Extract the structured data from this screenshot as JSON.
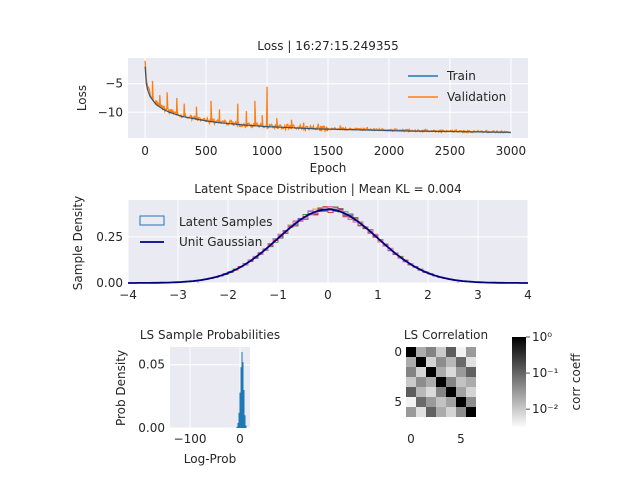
{
  "chart_data": [
    {
      "type": "line",
      "title": "Loss | 16:27:15.249355",
      "xlabel": "Epoch",
      "ylabel": "Loss",
      "xlim": [
        -140,
        3140
      ],
      "ylim": [
        -14.5,
        -0.5
      ],
      "xticks": [
        0,
        500,
        1000,
        1500,
        2000,
        2500,
        3000
      ],
      "yticks": [
        -5,
        -10
      ],
      "ytick_labels": [
        "−5",
        "−10"
      ],
      "grid": true,
      "legend": "top-right",
      "colors": {
        "train": "#1f77b4",
        "validation": "#ff7f0e"
      },
      "series": [
        {
          "name": "Train",
          "x": [
            0,
            10,
            20,
            40,
            70,
            100,
            150,
            200,
            300,
            400,
            500,
            600,
            700,
            800,
            1000,
            1200,
            1400,
            1600,
            1800,
            2000,
            2200,
            2400,
            2600,
            2800,
            3000
          ],
          "y": [
            -2.0,
            -5.0,
            -6.0,
            -7.2,
            -8.1,
            -8.8,
            -9.5,
            -10.0,
            -10.7,
            -11.1,
            -11.5,
            -11.8,
            -12.0,
            -12.2,
            -12.5,
            -12.7,
            -12.9,
            -13.0,
            -13.1,
            -13.2,
            -13.3,
            -13.35,
            -13.4,
            -13.45,
            -13.5
          ]
        },
        {
          "name": "Validation",
          "x": [
            0,
            10,
            20,
            40,
            70,
            100,
            150,
            200,
            300,
            400,
            500,
            600,
            700,
            800,
            1000,
            1200,
            1400,
            1600,
            1800,
            2000,
            2200,
            2400,
            2600,
            2800,
            3000
          ],
          "y": [
            -1.0,
            -4.0,
            -5.5,
            -6.8,
            -7.8,
            -8.5,
            -9.3,
            -9.8,
            -10.6,
            -11.0,
            -11.4,
            -11.7,
            -11.9,
            -12.1,
            -12.4,
            -12.6,
            -12.8,
            -12.9,
            -13.0,
            -13.1,
            -13.2,
            -13.3,
            -13.35,
            -13.4,
            -13.45
          ],
          "spikes": [
            [
              0,
              -1.0
            ],
            [
              60,
              -4.5
            ],
            [
              120,
              -7.0
            ],
            [
              180,
              -6.5
            ],
            [
              260,
              -7.5
            ],
            [
              320,
              -8.5
            ],
            [
              420,
              -9.0
            ],
            [
              540,
              -8.0
            ],
            [
              610,
              -9.5
            ],
            [
              760,
              -8.5
            ],
            [
              830,
              -9.8
            ],
            [
              900,
              -8.0
            ],
            [
              960,
              -10.5
            ],
            [
              1000,
              -5.5
            ],
            [
              1080,
              -11.0
            ],
            [
              1200,
              -11.3
            ],
            [
              1300,
              -11.8
            ],
            [
              1420,
              -12.0
            ],
            [
              1600,
              -12.3
            ],
            [
              1820,
              -12.6
            ],
            [
              2050,
              -12.8
            ],
            [
              2300,
              -12.9
            ],
            [
              2550,
              -13.0
            ],
            [
              2800,
              -13.1
            ]
          ]
        }
      ]
    },
    {
      "type": "histogram",
      "title": "Latent Space Distribution | Mean KL = 0.004",
      "xlabel": "",
      "ylabel": "Sample Density",
      "xlim": [
        -4,
        4
      ],
      "ylim": [
        0,
        0.45
      ],
      "xticks": [
        -4,
        -3,
        -2,
        -1,
        0,
        1,
        2,
        3,
        4
      ],
      "xtick_labels": [
        "−4",
        "−3",
        "−2",
        "−1",
        "0",
        "1",
        "2",
        "3",
        "4"
      ],
      "yticks": [
        0.0,
        0.25
      ],
      "ytick_labels": [
        "0.00",
        "0.25"
      ],
      "grid": true,
      "legend": "top-left",
      "legend_entries": [
        "Latent Samples",
        "Unit Gaussian"
      ],
      "colors": {
        "samples": "#1f77b4",
        "gaussian": "#000080",
        "dims": [
          "#1f77b4",
          "#ff7f0e",
          "#2ca02c",
          "#d62728",
          "#9467bd",
          "#8c564b",
          "#e377c2"
        ]
      },
      "latent_dims": 7,
      "bin_range": [
        -2.6,
        2.6
      ],
      "bin_count": 52
    },
    {
      "type": "histogram",
      "title": "LS Sample Probabilities",
      "xlabel": "Log-Prob",
      "ylabel": "Prob Density",
      "xlim": [
        -140,
        20
      ],
      "ylim": [
        0,
        0.064
      ],
      "xticks": [
        -100,
        0
      ],
      "xtick_labels": [
        "−100",
        "0"
      ],
      "yticks": [
        0.0,
        0.05
      ],
      "ytick_labels": [
        "0.00",
        "0.05"
      ],
      "grid": true,
      "color": "#1f77b4",
      "bins": [
        {
          "x": -6,
          "y": 0.001
        },
        {
          "x": -4,
          "y": 0.004
        },
        {
          "x": -2,
          "y": 0.012
        },
        {
          "x": 0,
          "y": 0.028
        },
        {
          "x": 2,
          "y": 0.048
        },
        {
          "x": 4,
          "y": 0.06
        },
        {
          "x": 6,
          "y": 0.052
        },
        {
          "x": 8,
          "y": 0.03
        },
        {
          "x": 10,
          "y": 0.01
        },
        {
          "x": 12,
          "y": 0.002
        }
      ]
    },
    {
      "type": "heatmap",
      "title": "LS Correlation",
      "xticks": [
        0,
        5
      ],
      "yticks": [
        0,
        5
      ],
      "colorbar": {
        "label": "corr coeff",
        "scale": "log",
        "ticks": [
          "10⁰",
          "10⁻¹",
          "10⁻²"
        ],
        "range": [
          0.003,
          1
        ]
      },
      "matrix": [
        [
          1,
          0.02,
          0.05,
          0.01,
          0.12,
          0.004,
          0.03
        ],
        [
          0.02,
          1,
          0.008,
          0.04,
          0.015,
          0.09,
          0.006
        ],
        [
          0.05,
          0.008,
          1,
          0.02,
          0.007,
          0.03,
          0.11
        ],
        [
          0.01,
          0.04,
          0.02,
          1,
          0.05,
          0.012,
          0.02
        ],
        [
          0.12,
          0.015,
          0.007,
          0.05,
          1,
          0.025,
          0.008
        ],
        [
          0.004,
          0.09,
          0.03,
          0.012,
          0.025,
          1,
          0.04
        ],
        [
          0.03,
          0.006,
          0.11,
          0.02,
          0.008,
          0.04,
          1
        ]
      ]
    }
  ]
}
